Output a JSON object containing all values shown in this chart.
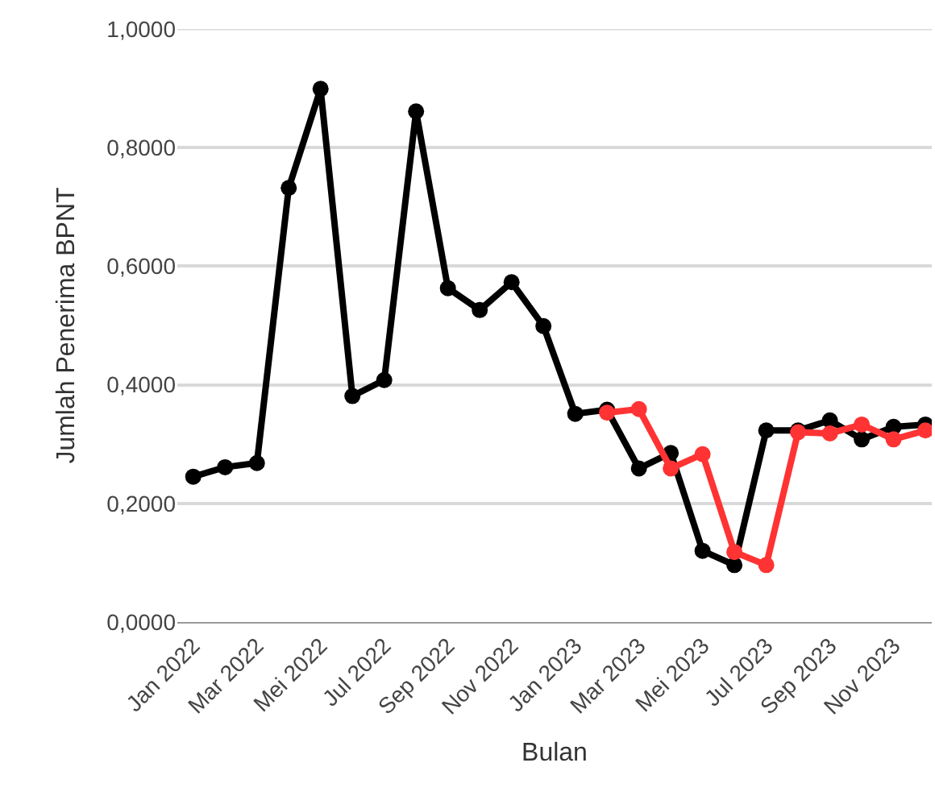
{
  "chart_data": {
    "type": "line",
    "xlabel": "Bulan",
    "ylabel": "Jumlah Penerima BPNT",
    "categories": [
      "Jan 2022",
      null,
      "Mar 2022",
      null,
      "Mei 2022",
      null,
      "Jul 2022",
      null,
      "Sep 2022",
      null,
      "Nov 2022",
      null,
      "Jan 2023",
      null,
      "Mar 2023",
      null,
      "Mei 2023",
      null,
      "Jul 2023",
      null,
      "Sep 2023",
      null,
      "Nov 2023",
      null
    ],
    "series": [
      {
        "color": "#000000",
        "values": [
          0.245,
          0.261,
          0.268,
          0.732,
          0.899,
          0.381,
          0.408,
          0.861,
          0.563,
          0.526,
          0.573,
          0.499,
          0.351,
          0.358,
          0.259,
          0.285,
          0.12,
          0.096,
          0.323,
          0.323,
          0.34,
          0.308,
          0.329,
          0.333
        ]
      },
      {
        "color": "#ff3333",
        "values": [
          null,
          null,
          null,
          null,
          null,
          null,
          null,
          null,
          null,
          null,
          null,
          null,
          null,
          0.353,
          0.359,
          0.259,
          0.283,
          0.118,
          0.096,
          0.32,
          0.318,
          0.333,
          0.308,
          0.323
        ]
      }
    ],
    "ylim": [
      0,
      1
    ],
    "yticks": [
      {
        "value": 0,
        "label": "0,0000"
      },
      {
        "value": 0.2,
        "label": "0,2000"
      },
      {
        "value": 0.4,
        "label": "0,4000"
      },
      {
        "value": 0.6,
        "label": "0,6000"
      },
      {
        "value": 0.8,
        "label": "0,8000"
      },
      {
        "value": 1,
        "label": "1,0000"
      }
    ],
    "grid": "y",
    "marker": "circle",
    "line_style": "solid"
  }
}
